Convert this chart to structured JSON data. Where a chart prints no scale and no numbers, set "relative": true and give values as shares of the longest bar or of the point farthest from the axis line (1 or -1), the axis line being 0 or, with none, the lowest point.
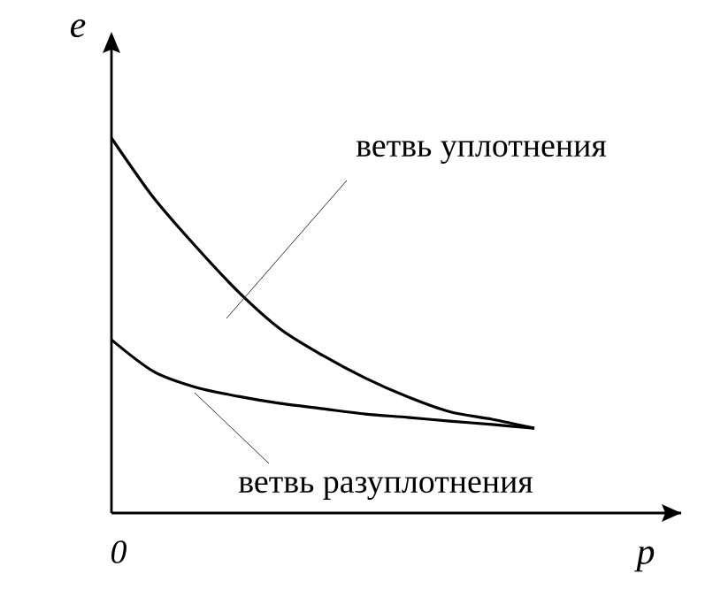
{
  "chart_data": {
    "type": "line",
    "relative": true,
    "xlabel": "p",
    "ylabel": "e",
    "categories": [
      null,
      null,
      null,
      null,
      null,
      null,
      null,
      null,
      null,
      null,
      null
    ],
    "series": [
      {
        "color": "#000000",
        "values": [
          1,
          0.84,
          0.71,
          0.59,
          0.49,
          0.42,
          0.36,
          0.31,
          0.27,
          0.25,
          0.226
        ]
      },
      {
        "color": "#000000",
        "values": [
          0.462,
          0.377,
          0.335,
          0.311,
          0.292,
          0.278,
          0.264,
          0.255,
          0.245,
          0.236,
          0.226
        ]
      }
    ],
    "annotations": [
      "ветвь уплотнения",
      "ветвь разуплотнения",
      "0"
    ]
  }
}
